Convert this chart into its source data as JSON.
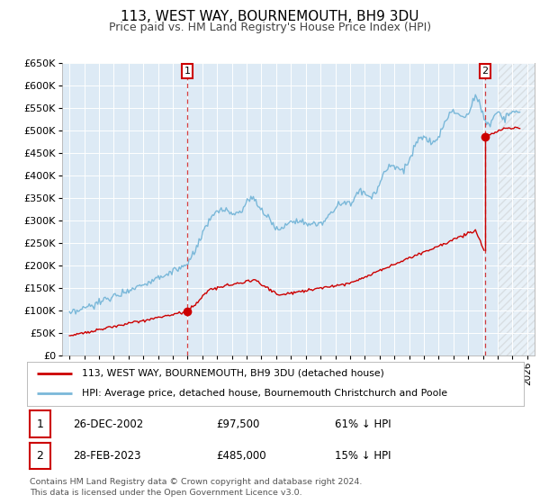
{
  "title": "113, WEST WAY, BOURNEMOUTH, BH9 3DU",
  "subtitle": "Price paid vs. HM Land Registry's House Price Index (HPI)",
  "legend_line1": "113, WEST WAY, BOURNEMOUTH, BH9 3DU (detached house)",
  "legend_line2": "HPI: Average price, detached house, Bournemouth Christchurch and Poole",
  "footnote": "Contains HM Land Registry data © Crown copyright and database right 2024.\nThis data is licensed under the Open Government Licence v3.0.",
  "point1_date": "26-DEC-2002",
  "point1_price": "£97,500",
  "point1_hpi": "61% ↓ HPI",
  "point2_date": "28-FEB-2023",
  "point2_price": "£485,000",
  "point2_hpi": "15% ↓ HPI",
  "hpi_color": "#7ab8d9",
  "price_color": "#cc0000",
  "plot_bg": "#ddeaf5",
  "grid_color": "#ffffff",
  "ylim": [
    0,
    650000
  ],
  "ytick_values": [
    0,
    50000,
    100000,
    150000,
    200000,
    250000,
    300000,
    350000,
    400000,
    450000,
    500000,
    550000,
    600000,
    650000
  ],
  "ytick_labels": [
    "£0",
    "£50K",
    "£100K",
    "£150K",
    "£200K",
    "£250K",
    "£300K",
    "£350K",
    "£400K",
    "£450K",
    "£500K",
    "£550K",
    "£600K",
    "£650K"
  ],
  "xlim_start": 1994.5,
  "xlim_end": 2026.5,
  "p1_x": 2002.97,
  "p1_y": 97500,
  "p2_x": 2023.15,
  "p2_y": 485000,
  "hatch_start": 2024.08
}
